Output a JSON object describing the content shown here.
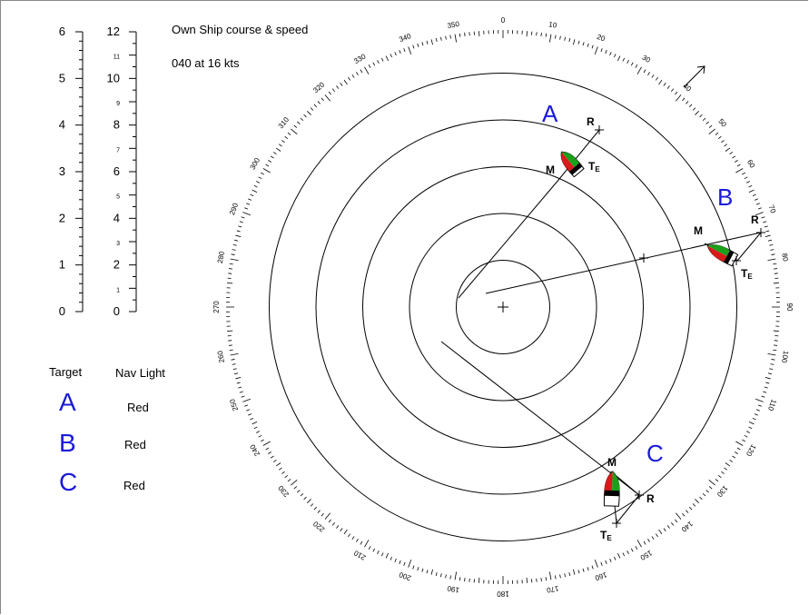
{
  "header": {
    "title": "Own Ship course & speed",
    "course_speed": "040  at 16 kts"
  },
  "scales": {
    "left_labels": [
      "0",
      "1",
      "2",
      "3",
      "4",
      "5",
      "6"
    ],
    "right_labels": [
      "0",
      "1",
      "2",
      "3",
      "4",
      "5",
      "6",
      "7",
      "8",
      "9",
      "10",
      "11",
      "12"
    ]
  },
  "table": {
    "col_target": "Target",
    "col_light": "Nav Light",
    "rows": [
      {
        "target": "A",
        "light": "Red"
      },
      {
        "target": "B",
        "light": "Red"
      },
      {
        "target": "C",
        "light": "Red"
      }
    ]
  },
  "plot": {
    "bearing_step_labels": 10,
    "range_rings": 5,
    "own_course_deg": 40,
    "markers": {
      "m": "M",
      "r": "R",
      "t": "T",
      "t_sub": "E"
    },
    "targets": [
      {
        "id": "A"
      },
      {
        "id": "B"
      },
      {
        "id": "C"
      }
    ]
  },
  "colors": {
    "target_letter": "#1a1ad8",
    "port_light": "#d81a1a",
    "starboard_light": "#1aa01a"
  }
}
